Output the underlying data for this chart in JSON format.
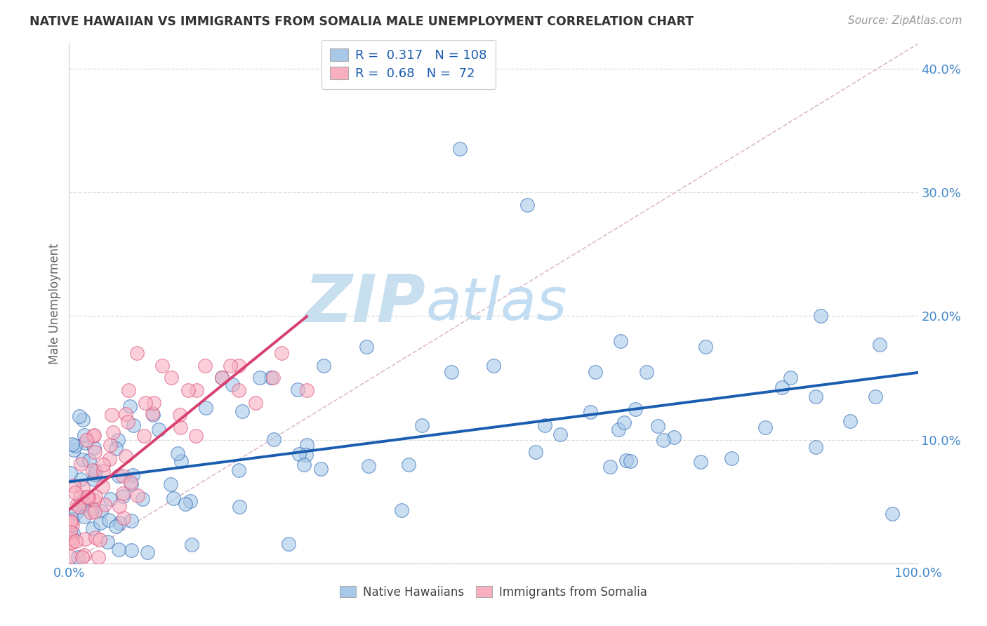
{
  "title": "NATIVE HAWAIIAN VS IMMIGRANTS FROM SOMALIA MALE UNEMPLOYMENT CORRELATION CHART",
  "source": "Source: ZipAtlas.com",
  "ylabel": "Male Unemployment",
  "xlim": [
    0.0,
    1.0
  ],
  "ylim": [
    0.0,
    0.42
  ],
  "hawaiian_color": "#a8c8e8",
  "somalia_color": "#f8b0c0",
  "hawaiian_line_color": "#1a5cb0",
  "somalia_line_color": "#d84070",
  "diagonal_color": "#ddbbcc",
  "R_hawaiian": 0.317,
  "N_hawaiian": 108,
  "R_somalia": 0.68,
  "N_somalia": 72,
  "background_color": "#ffffff",
  "watermark_zip": "ZIP",
  "watermark_atlas": "atlas",
  "watermark_color": "#c8dff0",
  "grid_color": "#dddddd",
  "title_color": "#333333",
  "source_color": "#999999",
  "tick_color": "#4488cc",
  "ylabel_color": "#666666"
}
